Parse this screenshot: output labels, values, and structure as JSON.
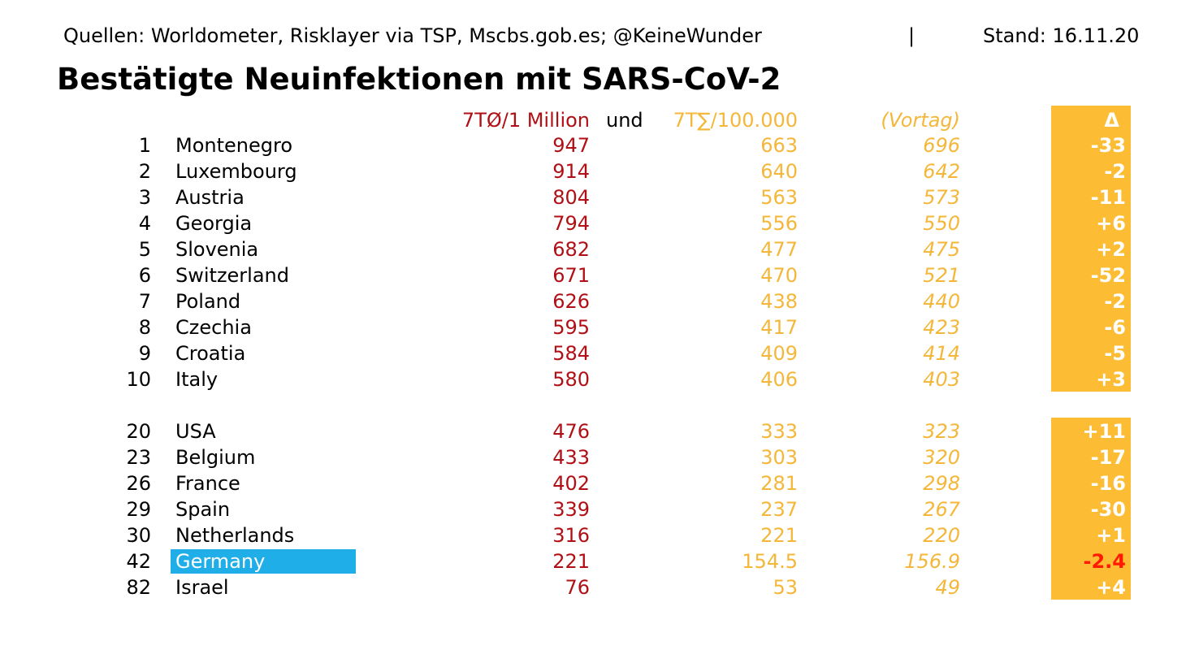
{
  "header": {
    "sources": "Quellen: Worldometer, Risklayer via TSP, Mscbs.gob.es; @KeineWunder",
    "separator": "|",
    "stand": "Stand: 16.11.20"
  },
  "title": "Bestätigte Neuinfektionen mit SARS-CoV-2",
  "columns": {
    "per_million": "7TØ/1 Million",
    "und": "und",
    "per_100k": "7T∑/100.000",
    "previous_day": "(Vortag)",
    "delta": "Δ"
  },
  "colors": {
    "per_million": "#b01015",
    "per_100k": "#f4b73a",
    "delta_bar": "#fcbd35",
    "highlight_country": "#1faee8",
    "highlight_delta": "#ff1a00"
  },
  "chart_data": {
    "type": "table",
    "rows": [
      {
        "rank": "1",
        "country": "Montenegro",
        "per_million": "947",
        "per_100k": "663",
        "previous_day": "696",
        "delta": "-33"
      },
      {
        "rank": "2",
        "country": "Luxembourg",
        "per_million": "914",
        "per_100k": "640",
        "previous_day": "642",
        "delta": "-2"
      },
      {
        "rank": "3",
        "country": "Austria",
        "per_million": "804",
        "per_100k": "563",
        "previous_day": "573",
        "delta": "-11"
      },
      {
        "rank": "4",
        "country": "Georgia",
        "per_million": "794",
        "per_100k": "556",
        "previous_day": "550",
        "delta": "+6"
      },
      {
        "rank": "5",
        "country": "Slovenia",
        "per_million": "682",
        "per_100k": "477",
        "previous_day": "475",
        "delta": "+2"
      },
      {
        "rank": "6",
        "country": "Switzerland",
        "per_million": "671",
        "per_100k": "470",
        "previous_day": "521",
        "delta": "-52"
      },
      {
        "rank": "7",
        "country": "Poland",
        "per_million": "626",
        "per_100k": "438",
        "previous_day": "440",
        "delta": "-2"
      },
      {
        "rank": "8",
        "country": "Czechia",
        "per_million": "595",
        "per_100k": "417",
        "previous_day": "423",
        "delta": "-6"
      },
      {
        "rank": "9",
        "country": "Croatia",
        "per_million": "584",
        "per_100k": "409",
        "previous_day": "414",
        "delta": "-5"
      },
      {
        "rank": "10",
        "country": "Italy",
        "per_million": "580",
        "per_100k": "406",
        "previous_day": "403",
        "delta": "+3"
      },
      {
        "rank": "20",
        "country": "USA",
        "per_million": "476",
        "per_100k": "333",
        "previous_day": "323",
        "delta": "+11"
      },
      {
        "rank": "23",
        "country": "Belgium",
        "per_million": "433",
        "per_100k": "303",
        "previous_day": "320",
        "delta": "-17"
      },
      {
        "rank": "26",
        "country": "France",
        "per_million": "402",
        "per_100k": "281",
        "previous_day": "298",
        "delta": "-16"
      },
      {
        "rank": "29",
        "country": "Spain",
        "per_million": "339",
        "per_100k": "237",
        "previous_day": "267",
        "delta": "-30"
      },
      {
        "rank": "30",
        "country": "Netherlands",
        "per_million": "316",
        "per_100k": "221",
        "previous_day": "220",
        "delta": "+1"
      },
      {
        "rank": "42",
        "country": "Germany",
        "per_million": "221",
        "per_100k": "154.5",
        "previous_day": "156.9",
        "delta": "-2.4",
        "highlight": true
      },
      {
        "rank": "82",
        "country": "Israel",
        "per_million": "76",
        "per_100k": "53",
        "previous_day": "49",
        "delta": "+4"
      }
    ]
  }
}
